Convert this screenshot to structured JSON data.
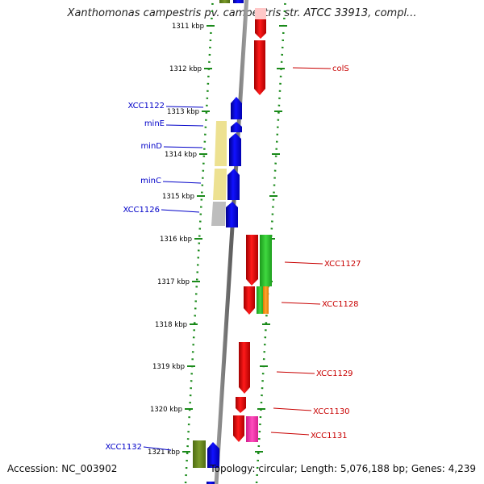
{
  "title": "Xanthomonas campestris pv. campestris str. ATCC 33913, compl...",
  "footer": {
    "accession": "Accession: NC_003902",
    "summary": "Topology: circular; Length: 5,076,188 bp; Genes: 4,239"
  },
  "scale": {
    "unit": "kbp",
    "ticks": [
      {
        "value": 1311,
        "label": "1311 kbp"
      },
      {
        "value": 1312,
        "label": "1312 kbp"
      },
      {
        "value": 1313,
        "label": "1313 kbp"
      },
      {
        "value": 1314,
        "label": "1314 kbp"
      },
      {
        "value": 1315,
        "label": "1315 kbp"
      },
      {
        "value": 1316,
        "label": "1316 kbp"
      },
      {
        "value": 1317,
        "label": "1317 kbp"
      },
      {
        "value": 1318,
        "label": "1318 kbp"
      },
      {
        "value": 1319,
        "label": "1319 kbp"
      },
      {
        "value": 1320,
        "label": "1320 kbp"
      },
      {
        "value": 1321,
        "label": "1321 kbp"
      }
    ]
  },
  "colors": {
    "minus_strand": "#0000ee",
    "plus_strand": "#ee0000",
    "backbone": "#8a8a8a",
    "dotted_guides": "#1a8a1a"
  },
  "minus_genes": [
    {
      "label": "XCC1122",
      "kbp": 1312.9
    },
    {
      "label": "minE",
      "kbp": 1313.35
    },
    {
      "label": "minD",
      "kbp": 1313.8
    },
    {
      "label": "minC",
      "kbp": 1314.65
    },
    {
      "label": "XCC1126",
      "kbp": 1315.3
    },
    {
      "label": "XCC1132",
      "kbp": 1320.95
    }
  ],
  "plus_genes": [
    {
      "label": "colS",
      "kbp": 1312.0
    },
    {
      "label": "XCC1127",
      "kbp": 1316.6
    },
    {
      "label": "XCC1128",
      "kbp": 1317.35
    },
    {
      "label": "XCC1129",
      "kbp": 1318.95
    },
    {
      "label": "XCC1130",
      "kbp": 1319.75
    },
    {
      "label": "XCC1131",
      "kbp": 1320.3
    }
  ]
}
